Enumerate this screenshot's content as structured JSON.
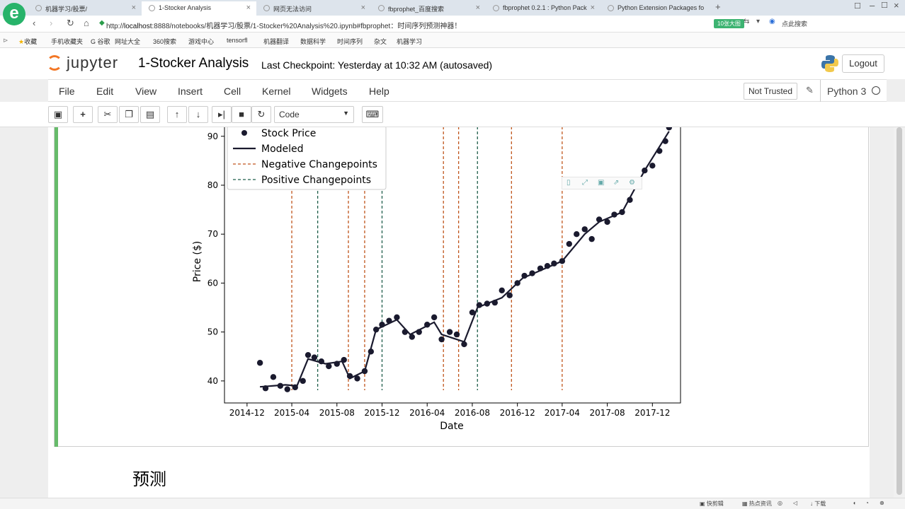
{
  "browser": {
    "tabs": [
      {
        "title": "机器学习/股票/"
      },
      {
        "title": "1-Stocker Analysis",
        "active": true
      },
      {
        "title": "网页无法访问"
      },
      {
        "title": "fbprophet_百度搜索"
      },
      {
        "title": "fbprophet 0.2.1 : Python Pack"
      },
      {
        "title": "Python Extension Packages fo"
      }
    ],
    "url_prefix": "http://",
    "url_host": "localhost",
    "url_rest": ":8888/notebooks/机器学习/股票/1-Stocker%20Analysis%20.ipynb#fbprophet：时间序列预测神器！",
    "right_pill": "10张大图",
    "search_label": "点此搜索",
    "bookmarks": [
      "收藏",
      "手机收藏夹",
      "谷歌",
      "网址大全",
      "360搜索",
      "游戏中心",
      "tensorfl",
      "机器翻译",
      "数据科学",
      "时间序列",
      "杂文",
      "机器学习"
    ]
  },
  "jupyter": {
    "logo_text": "jupyter",
    "notebook_name": "1-Stocker Analysis",
    "checkpoint": "Last Checkpoint: Yesterday at 10:32 AM (autosaved)",
    "logout": "Logout",
    "menu": [
      "File",
      "Edit",
      "View",
      "Insert",
      "Cell",
      "Kernel",
      "Widgets",
      "Help"
    ],
    "not_trusted": "Not Trusted",
    "kernel_name": "Python 3",
    "cell_type": "Code"
  },
  "chart_data": {
    "type": "line",
    "xlabel": "Date",
    "ylabel": "Price ($)",
    "x_ticks": [
      "2014-12",
      "2015-04",
      "2015-08",
      "2015-12",
      "2016-04",
      "2016-08",
      "2016-12",
      "2017-04",
      "2017-08",
      "2017-12"
    ],
    "y_ticks": [
      40,
      50,
      60,
      70,
      80,
      90
    ],
    "ylim": [
      35.5,
      93
    ],
    "legend": {
      "placement": "top-left",
      "entries": [
        "Stock Price",
        "Modeled",
        "Negative Changepoints",
        "Positive Changepoints"
      ]
    },
    "series": [
      {
        "name": "Stock Price",
        "points": [
          [
            "2015-01-05",
            43.7
          ],
          [
            "2015-01-20",
            38.5
          ],
          [
            "2015-02-10",
            40.8
          ],
          [
            "2015-03-01",
            39.0
          ],
          [
            "2015-03-20",
            38.3
          ],
          [
            "2015-04-10",
            38.7
          ],
          [
            "2015-05-01",
            40.0
          ],
          [
            "2015-05-15",
            45.3
          ],
          [
            "2015-06-01",
            44.8
          ],
          [
            "2015-06-20",
            44.0
          ],
          [
            "2015-07-10",
            43.0
          ],
          [
            "2015-08-01",
            43.5
          ],
          [
            "2015-08-20",
            44.3
          ],
          [
            "2015-09-05",
            41.0
          ],
          [
            "2015-09-25",
            40.5
          ],
          [
            "2015-10-15",
            42.0
          ],
          [
            "2015-11-01",
            46.0
          ],
          [
            "2015-11-15",
            50.5
          ],
          [
            "2015-12-01",
            51.5
          ],
          [
            "2015-12-20",
            52.3
          ],
          [
            "2016-01-10",
            53.0
          ],
          [
            "2016-02-01",
            50.0
          ],
          [
            "2016-02-20",
            49.0
          ],
          [
            "2016-03-10",
            50.0
          ],
          [
            "2016-04-01",
            51.5
          ],
          [
            "2016-04-20",
            53.0
          ],
          [
            "2016-05-10",
            48.5
          ],
          [
            "2016-06-01",
            50.0
          ],
          [
            "2016-06-20",
            49.5
          ],
          [
            "2016-07-10",
            47.5
          ],
          [
            "2016-08-01",
            54.0
          ],
          [
            "2016-08-20",
            55.5
          ],
          [
            "2016-09-10",
            55.8
          ],
          [
            "2016-10-01",
            56.0
          ],
          [
            "2016-10-20",
            58.5
          ],
          [
            "2016-11-10",
            57.5
          ],
          [
            "2016-12-01",
            60.0
          ],
          [
            "2016-12-20",
            61.5
          ],
          [
            "2017-01-10",
            62.0
          ],
          [
            "2017-02-01",
            63.0
          ],
          [
            "2017-02-20",
            63.5
          ],
          [
            "2017-03-10",
            64.0
          ],
          [
            "2017-04-01",
            64.5
          ],
          [
            "2017-04-20",
            68.0
          ],
          [
            "2017-05-10",
            70.0
          ],
          [
            "2017-06-01",
            71.0
          ],
          [
            "2017-06-20",
            69.0
          ],
          [
            "2017-07-10",
            73.0
          ],
          [
            "2017-08-01",
            72.5
          ],
          [
            "2017-08-20",
            74.0
          ],
          [
            "2017-09-10",
            74.5
          ],
          [
            "2017-10-01",
            77.0
          ],
          [
            "2017-10-20",
            80.5
          ],
          [
            "2017-11-10",
            83.0
          ],
          [
            "2017-12-01",
            84.0
          ],
          [
            "2017-12-20",
            87.0
          ],
          [
            "2018-01-05",
            89.0
          ],
          [
            "2018-01-15",
            91.8
          ]
        ]
      },
      {
        "name": "Modeled",
        "points": [
          [
            "2015-01-05",
            38.8
          ],
          [
            "2015-03-15",
            39.2
          ],
          [
            "2015-04-15",
            39.0
          ],
          [
            "2015-05-15",
            44.5
          ],
          [
            "2015-07-01",
            43.5
          ],
          [
            "2015-08-15",
            44.0
          ],
          [
            "2015-09-05",
            40.5
          ],
          [
            "2015-10-15",
            42.0
          ],
          [
            "2015-11-15",
            50.5
          ],
          [
            "2016-01-10",
            52.5
          ],
          [
            "2016-02-15",
            49.5
          ],
          [
            "2016-04-20",
            52.0
          ],
          [
            "2016-05-10",
            49.5
          ],
          [
            "2016-07-10",
            48.0
          ],
          [
            "2016-08-15",
            55.0
          ],
          [
            "2016-10-20",
            57.0
          ],
          [
            "2016-12-15",
            61.0
          ],
          [
            "2017-04-01",
            64.5
          ],
          [
            "2017-06-01",
            70.0
          ],
          [
            "2017-07-10",
            72.5
          ],
          [
            "2017-09-10",
            74.5
          ],
          [
            "2017-11-10",
            83.0
          ],
          [
            "2018-01-15",
            91.0
          ]
        ]
      }
    ],
    "negative_changepoints": [
      "2015-04-01",
      "2015-09-01",
      "2015-10-15",
      "2016-05-15",
      "2016-06-25",
      "2016-11-15",
      "2017-04-01"
    ],
    "positive_changepoints": [
      "2015-06-10",
      "2015-12-01",
      "2016-08-15"
    ]
  },
  "markdown": {
    "heading": "预测"
  },
  "statusbar": [
    "快剪辑",
    "热点资讯",
    "下载"
  ]
}
